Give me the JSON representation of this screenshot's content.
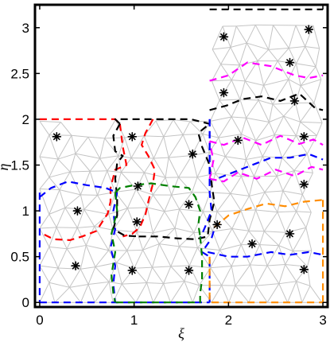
{
  "chart_data": {
    "type": "scatter",
    "title": "",
    "xlabel": "ξ",
    "ylabel": "η",
    "xlim": [
      -0.05,
      3.05
    ],
    "ylim": [
      -0.05,
      3.25
    ],
    "xticks": [
      0,
      1,
      2,
      3
    ],
    "xtick_labels": [
      "0",
      "1",
      "2",
      "3"
    ],
    "yticks": [
      0,
      0.5,
      1,
      1.5,
      2,
      2.5,
      3
    ],
    "ytick_labels": [
      "0",
      "0.5",
      "1",
      "1.5",
      "2",
      "2.5",
      "3"
    ],
    "grid": false,
    "domain_outline": [
      [
        0,
        0
      ],
      [
        3,
        0
      ],
      [
        3,
        3.2
      ],
      [
        1.8,
        3.2
      ],
      [
        1.8,
        2
      ],
      [
        0,
        2
      ]
    ],
    "mesh_color": "#c4c4c4",
    "marker_symbol": "*",
    "markers": [
      [
        0.18,
        1.81
      ],
      [
        0.4,
        1.0
      ],
      [
        0.38,
        0.4
      ],
      [
        0.98,
        1.81
      ],
      [
        1.04,
        1.27
      ],
      [
        1.03,
        0.88
      ],
      [
        0.98,
        0.35
      ],
      [
        1.62,
        1.62
      ],
      [
        1.58,
        1.07
      ],
      [
        1.58,
        0.35
      ],
      [
        1.88,
        0.85
      ],
      [
        2.1,
        1.77
      ],
      [
        2.25,
        0.64
      ],
      [
        2.65,
        0.75
      ],
      [
        2.8,
        0.36
      ],
      [
        2.8,
        1.81
      ],
      [
        2.8,
        1.29
      ],
      [
        1.95,
        2.9
      ],
      [
        2.85,
        2.98
      ],
      [
        2.65,
        2.62
      ],
      [
        1.95,
        2.29
      ],
      [
        2.7,
        2.2
      ]
    ],
    "series": [
      {
        "color": "#ff0000",
        "paths": [
          [
            [
              0,
              2
            ],
            [
              0.8,
              2
            ],
            [
              0.85,
              1.95
            ]
          ],
          [
            [
              0.85,
              1.95
            ],
            [
              0.88,
              1.7
            ],
            [
              0.92,
              1.5
            ],
            [
              0.8,
              1.45
            ],
            [
              0.75,
              1.25
            ],
            [
              0.75,
              1.1
            ],
            [
              0.72,
              0.97
            ],
            [
              0.6,
              0.78
            ],
            [
              0.45,
              0.72
            ],
            [
              0.32,
              0.68
            ],
            [
              0.15,
              0.69
            ],
            [
              0.03,
              0.75
            ]
          ],
          [
            [
              1.2,
              2
            ],
            [
              1.12,
              1.85
            ],
            [
              1.08,
              1.72
            ],
            [
              1.15,
              1.6
            ],
            [
              1.22,
              1.45
            ],
            [
              1.2,
              1.3
            ],
            [
              1.15,
              1.1
            ],
            [
              1.12,
              0.96
            ],
            [
              1.06,
              0.82
            ],
            [
              0.98,
              0.75
            ],
            [
              0.88,
              0.72
            ]
          ]
        ]
      },
      {
        "color": "#000000",
        "paths": [
          [
            [
              0.85,
              1.95
            ],
            [
              0.8,
              2
            ],
            [
              1.2,
              2
            ],
            [
              1.6,
              2
            ],
            [
              1.8,
              1.95
            ]
          ],
          [
            [
              0.85,
              1.95
            ],
            [
              0.78,
              1.82
            ],
            [
              0.8,
              1.65
            ],
            [
              0.88,
              1.6
            ],
            [
              0.82,
              1.52
            ],
            [
              0.8,
              1.35
            ],
            [
              0.82,
              1.15
            ],
            [
              0.82,
              0.95
            ],
            [
              0.78,
              0.8
            ],
            [
              0.9,
              0.73
            ],
            [
              1.05,
              0.72
            ]
          ],
          [
            [
              1.05,
              0.72
            ],
            [
              1.25,
              0.72
            ],
            [
              1.45,
              0.7
            ],
            [
              1.65,
              0.69
            ],
            [
              1.78,
              0.72
            ],
            [
              1.8,
              0.9
            ],
            [
              1.85,
              1.1
            ],
            [
              1.82,
              1.3
            ],
            [
              1.8,
              1.5
            ],
            [
              1.72,
              1.7
            ],
            [
              1.68,
              1.85
            ],
            [
              1.8,
              1.95
            ]
          ],
          [
            [
              1.8,
              3.2
            ],
            [
              3,
              3.2
            ]
          ],
          [
            [
              1.8,
              2.1
            ],
            [
              1.98,
              2.15
            ],
            [
              2.15,
              2.22
            ],
            [
              2.35,
              2.25
            ],
            [
              2.55,
              2.2
            ],
            [
              2.75,
              2.28
            ],
            [
              2.92,
              2.12
            ],
            [
              3,
              2.1
            ]
          ]
        ]
      },
      {
        "color": "#ff00ff",
        "paths": [
          [
            [
              1.8,
              2.42
            ],
            [
              2.0,
              2.48
            ],
            [
              2.2,
              2.62
            ],
            [
              2.45,
              2.58
            ],
            [
              2.7,
              2.48
            ],
            [
              2.85,
              2.45
            ],
            [
              3,
              2.48
            ]
          ],
          [
            [
              1.8,
              1.76
            ],
            [
              1.95,
              1.72
            ],
            [
              2.15,
              1.8
            ],
            [
              2.35,
              1.72
            ],
            [
              2.55,
              1.82
            ],
            [
              2.75,
              1.73
            ],
            [
              2.9,
              1.78
            ],
            [
              3,
              1.72
            ]
          ],
          [
            [
              1.8,
              1.35
            ],
            [
              1.95,
              1.32
            ],
            [
              2.1,
              1.42
            ],
            [
              2.3,
              1.35
            ],
            [
              2.5,
              1.45
            ],
            [
              2.7,
              1.38
            ],
            [
              2.88,
              1.48
            ],
            [
              3,
              1.45
            ]
          ],
          [
            [
              1.8,
              1.35
            ],
            [
              1.84,
              1.55
            ],
            [
              1.8,
              1.76
            ]
          ]
        ]
      },
      {
        "color": "#0000ff",
        "paths": [
          [
            [
              0,
              1.15
            ],
            [
              0.12,
              1.25
            ],
            [
              0.3,
              1.32
            ],
            [
              0.5,
              1.28
            ],
            [
              0.7,
              1.25
            ],
            [
              0.82,
              1.2
            ]
          ],
          [
            [
              1.8,
              2.0
            ],
            [
              1.8,
              1.2
            ],
            [
              1.82,
              1.0
            ],
            [
              1.75,
              0.82
            ],
            [
              1.7,
              0.7
            ]
          ],
          [
            [
              0.82,
              1.2
            ],
            [
              0.78,
              1.0
            ],
            [
              0.8,
              0.8
            ],
            [
              0.75,
              0.6
            ],
            [
              0.8,
              0.4
            ],
            [
              0.78,
              0.2
            ],
            [
              0.8,
              0
            ]
          ],
          [
            [
              0,
              1.2
            ],
            [
              0,
              0
            ]
          ],
          [
            [
              0,
              0
            ],
            [
              0.8,
              0
            ],
            [
              1.8,
              0
            ]
          ],
          [
            [
              1.8,
              0
            ],
            [
              1.8,
              0.35
            ],
            [
              1.8,
              0.5
            ],
            [
              1.72,
              0.55
            ],
            [
              1.82,
              0.7
            ],
            [
              1.85,
              0.8
            ]
          ],
          [
            [
              1.9,
              1.36
            ],
            [
              2.05,
              1.42
            ],
            [
              2.25,
              1.5
            ],
            [
              2.45,
              1.58
            ],
            [
              2.65,
              1.58
            ],
            [
              2.85,
              1.62
            ],
            [
              3,
              1.56
            ]
          ],
          [
            [
              1.78,
              0.55
            ],
            [
              2.0,
              0.5
            ],
            [
              2.2,
              0.5
            ],
            [
              2.45,
              0.55
            ],
            [
              2.65,
              0.52
            ],
            [
              2.85,
              0.55
            ],
            [
              3,
              0.52
            ]
          ],
          [
            [
              1.8,
              2
            ],
            [
              1.8,
              1.6
            ],
            [
              1.8,
              1.36
            ]
          ]
        ]
      },
      {
        "color": "#008000",
        "paths": [
          [
            [
              0.8,
              1.2
            ],
            [
              0.85,
              1.25
            ],
            [
              1.0,
              1.28
            ],
            [
              1.18,
              1.3
            ],
            [
              1.38,
              1.27
            ],
            [
              1.58,
              1.25
            ],
            [
              1.65,
              1.15
            ],
            [
              1.7,
              1.0
            ],
            [
              1.68,
              0.85
            ],
            [
              1.7,
              0.72
            ]
          ],
          [
            [
              1.7,
              0.72
            ],
            [
              1.72,
              0.5
            ],
            [
              1.72,
              0.25
            ],
            [
              1.7,
              0.1
            ],
            [
              1.7,
              0.0
            ],
            [
              1.3,
              0.0
            ],
            [
              0.8,
              0.0
            ]
          ],
          [
            [
              0.8,
              1.2
            ],
            [
              0.82,
              1.0
            ],
            [
              0.76,
              0.75
            ],
            [
              0.8,
              0.55
            ],
            [
              0.76,
              0.3
            ],
            [
              0.78,
              0.1
            ],
            [
              0.8,
              0
            ]
          ]
        ]
      },
      {
        "color": "#ff8c00",
        "paths": [
          [
            [
              1.85,
              0.82
            ],
            [
              2.0,
              0.95
            ],
            [
              2.2,
              1.02
            ],
            [
              2.4,
              1.08
            ],
            [
              2.6,
              1.05
            ],
            [
              2.8,
              1.1
            ],
            [
              3,
              1.12
            ]
          ],
          [
            [
              1.8,
              0.5
            ],
            [
              1.8,
              0.3
            ],
            [
              1.8,
              0.0
            ],
            [
              3,
              0.0
            ]
          ],
          [
            [
              3,
              0.0
            ],
            [
              3,
              1.12
            ]
          ]
        ]
      }
    ]
  }
}
